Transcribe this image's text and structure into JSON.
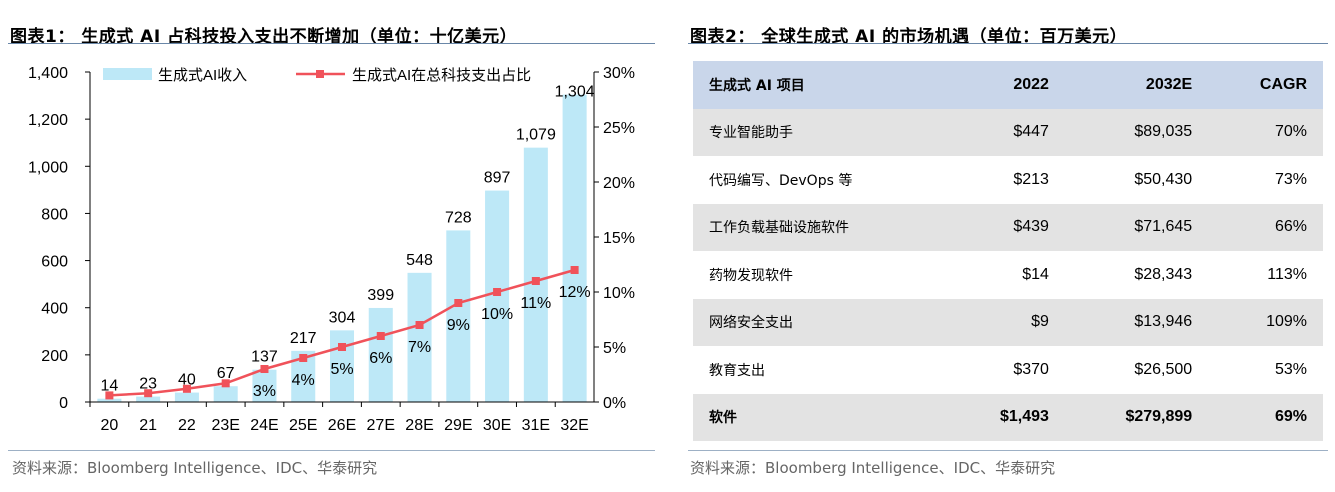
{
  "left": {
    "title": "图表1： 生成式 AI 占科技投入支出不断增加（单位：十亿美元）",
    "source": "资料来源：Bloomberg Intelligence、IDC、华泰研究"
  },
  "right": {
    "title": "图表2： 全球生成式 AI 的市场机遇（单位：百万美元）",
    "source": "资料来源：Bloomberg Intelligence、IDC、华泰研究"
  },
  "chart_data": [
    {
      "type": "bar+line",
      "categories": [
        "20",
        "21",
        "22",
        "23E",
        "24E",
        "25E",
        "26E",
        "27E",
        "28E",
        "29E",
        "30E",
        "31E",
        "32E"
      ],
      "series": [
        {
          "name": "生成式AI收入",
          "axis": "left",
          "kind": "bar",
          "color": "#bde8f7",
          "values": [
            14,
            23,
            40,
            67,
            137,
            217,
            304,
            399,
            548,
            728,
            897,
            1079,
            1304
          ],
          "labels": [
            "14",
            "23",
            "40",
            "67",
            "137",
            "217",
            "304",
            "399",
            "548",
            "728",
            "897",
            "1,079",
            "1,304"
          ]
        },
        {
          "name": "生成式AI在总科技支出占比",
          "axis": "right",
          "kind": "line",
          "color": "#f0525a",
          "values": [
            0.6,
            0.8,
            1.2,
            1.7,
            3,
            4,
            5,
            6,
            7,
            9,
            10,
            11,
            12
          ],
          "labels": [
            "",
            "",
            "",
            "",
            "3%",
            "4%",
            "5%",
            "6%",
            "7%",
            "9%",
            "10%",
            "11%",
            "12%"
          ]
        }
      ],
      "y_left": {
        "lim": [
          0,
          1400
        ],
        "ticks": [
          "0",
          "200",
          "400",
          "600",
          "800",
          "1,000",
          "1,200",
          "1,400"
        ]
      },
      "y_right": {
        "lim": [
          0,
          30
        ],
        "ticks": [
          "0%",
          "5%",
          "10%",
          "15%",
          "20%",
          "25%",
          "30%"
        ]
      },
      "legend_position": "top",
      "grid": false
    },
    {
      "type": "table",
      "columns": [
        "生成式 AI 项目",
        "2022",
        "2032E",
        "CAGR"
      ],
      "rows": [
        [
          "专业智能助手",
          "$447",
          "$89,035",
          "70%"
        ],
        [
          "代码编写、DevOps 等",
          "$213",
          "$50,430",
          "73%"
        ],
        [
          "工作负载基础设施软件",
          "$439",
          "$71,645",
          "66%"
        ],
        [
          "药物发现软件",
          "$14",
          "$28,343",
          "113%"
        ],
        [
          "网络安全支出",
          "$9",
          "$13,946",
          "109%"
        ],
        [
          "教育支出",
          "$370",
          "$26,500",
          "53%"
        ],
        [
          "软件",
          "$1,493",
          "$279,899",
          "69%"
        ]
      ],
      "header_color": "#c9d6ea",
      "shade_color": "#e3e3e3"
    }
  ]
}
